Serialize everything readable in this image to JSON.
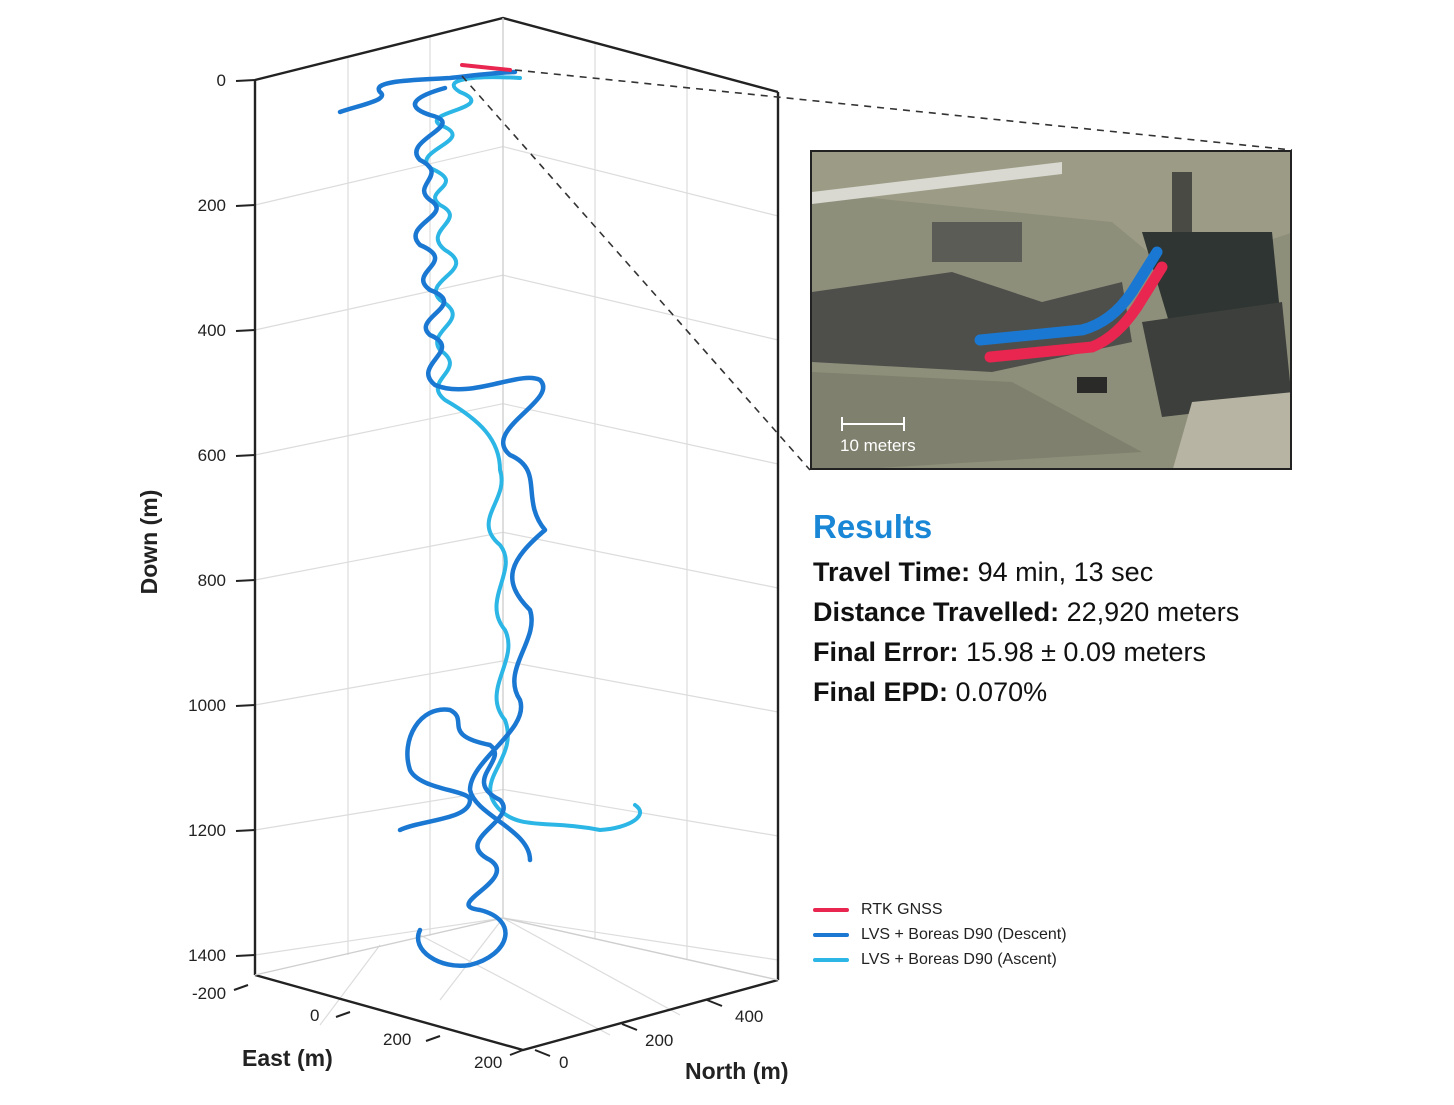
{
  "axes": {
    "down_label": "Down (m)",
    "east_label": "East (m)",
    "north_label": "North (m)",
    "down_ticks": [
      "0",
      "200",
      "400",
      "600",
      "800",
      "1000",
      "1200",
      "1400"
    ],
    "east_ticks": [
      "-200",
      "0",
      "200",
      "200"
    ],
    "north_ticks": [
      "0",
      "200",
      "400"
    ]
  },
  "results": {
    "heading": "Results",
    "items": [
      {
        "label": "Travel Time:",
        "value": "94 min, 13 sec"
      },
      {
        "label": "Distance Travelled:",
        "value": "22,920 meters"
      },
      {
        "label": "Final Error:",
        "value": "15.98 ± 0.09 meters"
      },
      {
        "label": "Final EPD:",
        "value": "0.070%"
      }
    ]
  },
  "inset": {
    "scale_label": "10 meters"
  },
  "legend": [
    {
      "label": "RTK GNSS",
      "color": "#e8264f"
    },
    {
      "label": "LVS + Boreas D90 (Descent)",
      "color": "#1a78d3"
    },
    {
      "label": "LVS + Boreas D90 (Ascent)",
      "color": "#2bb6e6"
    }
  ],
  "chart_data": {
    "type": "line",
    "projection": "3d",
    "xlabel": "East (m)",
    "ylabel": "North (m)",
    "zlabel": "Down (m)",
    "zlim": [
      0,
      1450
    ],
    "z_inverted": true,
    "grid": true,
    "legend_position": "bottom-right",
    "series": [
      {
        "name": "RTK GNSS",
        "color": "#e8264f",
        "down_m": [
          0,
          0
        ],
        "note_span": "short surface track near origin"
      },
      {
        "name": "LVS + Boreas D90 (Descent)",
        "color": "#1a78d3",
        "down_m": [
          0,
          1420
        ]
      },
      {
        "name": "LVS + Boreas D90 (Ascent)",
        "color": "#2bb6e6",
        "down_m": [
          1420,
          0
        ]
      }
    ]
  }
}
